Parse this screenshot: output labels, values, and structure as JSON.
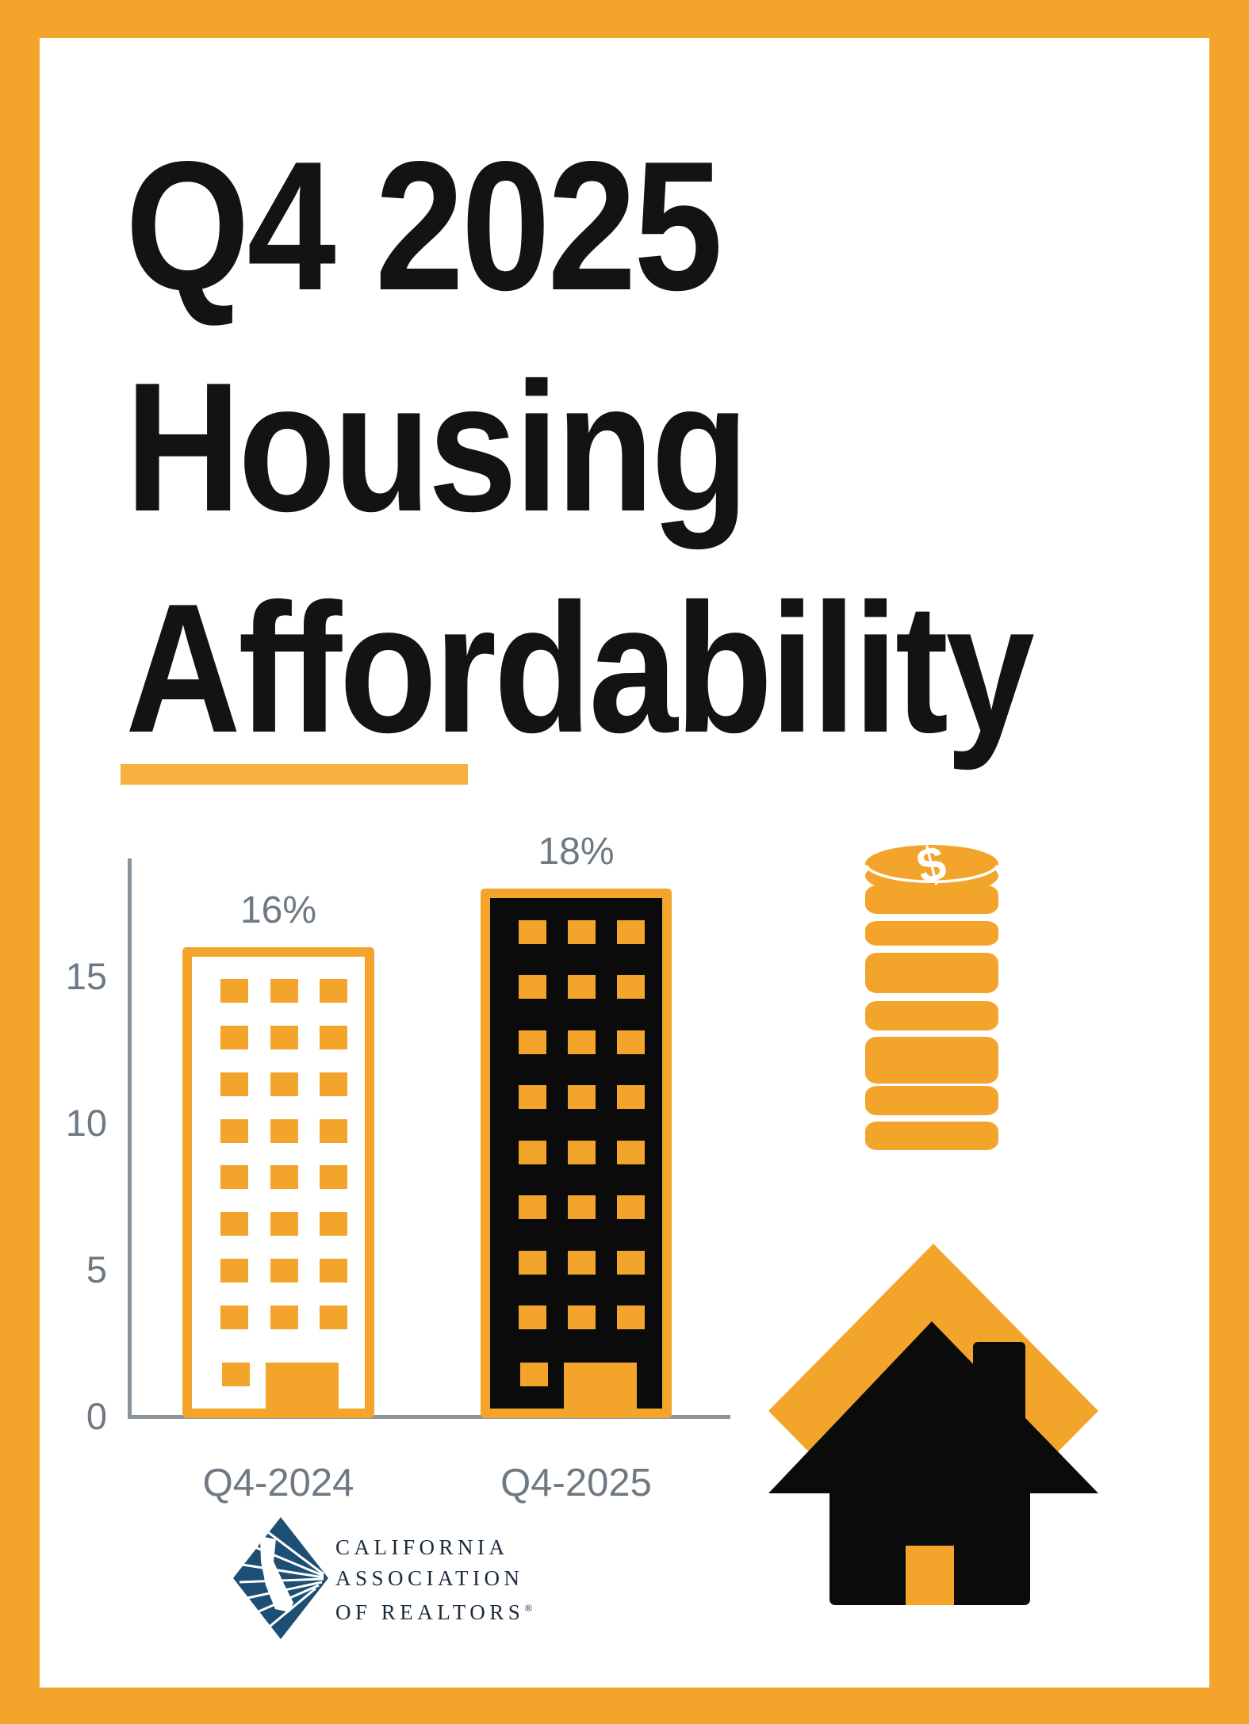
{
  "poster": {
    "title_lines": [
      "Q4 2025",
      "Housing",
      "Affordability"
    ]
  },
  "chart_data": {
    "type": "bar",
    "title": "Q4 2025 Housing Affordability",
    "categories": [
      "Q4-2024",
      "Q4-2025"
    ],
    "values": [
      16,
      18
    ],
    "value_labels": [
      "16%",
      "18%"
    ],
    "bar_styles": [
      "outline",
      "solid"
    ],
    "yticks": [
      0,
      5,
      10,
      15
    ],
    "ylim": [
      0,
      19
    ],
    "xlabel": "",
    "ylabel": "",
    "grid": false,
    "legend": false,
    "bar_motif": "high-rise building with orange windows and door",
    "floors": 8,
    "windows_per_floor": 3
  },
  "icons": {
    "coins": {
      "name": "coin-stack-icon",
      "symbol": "$"
    },
    "house": {
      "name": "house-icon"
    }
  },
  "logo": {
    "lines": [
      "CALIFORNIA",
      "ASSOCIATION",
      "OF REALTORS"
    ],
    "registered_mark": "®"
  },
  "colors": {
    "orange": "#F3A52B",
    "underline_orange": "#F6B13E",
    "black": "#0B0B0B",
    "label_gray": "#6F7983",
    "axis_gray": "#8A929A",
    "logo_navy": "#1D4E74",
    "logo_text_navy": "#1B2B3C",
    "background": "#FFFFFF"
  }
}
